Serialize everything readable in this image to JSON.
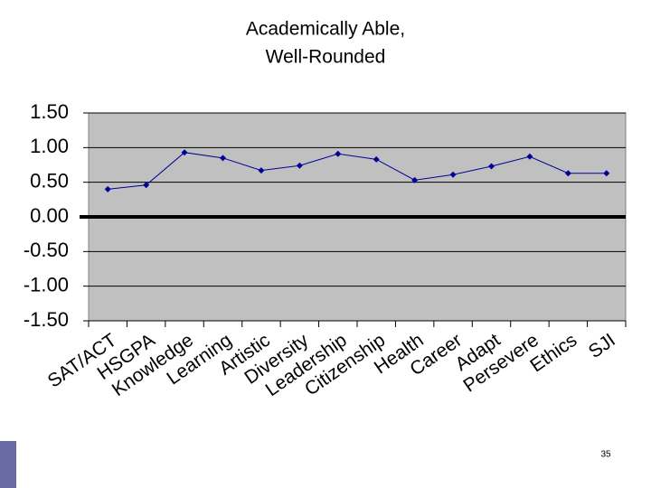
{
  "chart_data": {
    "type": "line",
    "title": [
      "Academically Able,",
      "Well-Rounded"
    ],
    "categories": [
      "SAT/ACT",
      "HSGPA",
      "Knowledge",
      "Learning",
      "Artistic",
      "Diversity",
      "Leadership",
      "Citizenship",
      "Health",
      "Career",
      "Adapt",
      "Persevere",
      "Ethics",
      "SJI"
    ],
    "series": [
      {
        "color": "#000099",
        "values": [
          0.4,
          0.46,
          0.93,
          0.85,
          0.67,
          0.74,
          0.91,
          0.83,
          0.53,
          0.61,
          0.73,
          0.87,
          0.63,
          0.63
        ]
      }
    ],
    "ylim": [
      -1.5,
      1.5
    ],
    "yticks": [
      {
        "value": -1.5,
        "label": "-1.50"
      },
      {
        "value": -1,
        "label": "-1.00"
      },
      {
        "value": -0.5,
        "label": "-0.50"
      },
      {
        "value": 0,
        "label": "0.00"
      },
      {
        "value": 0.5,
        "label": "0.50"
      },
      {
        "value": 1,
        "label": "1.00"
      },
      {
        "value": 1.5,
        "label": "1.50"
      }
    ],
    "grid": true,
    "zero_line": true,
    "background": "#c0c0c0"
  },
  "slide": {
    "number": "35"
  }
}
